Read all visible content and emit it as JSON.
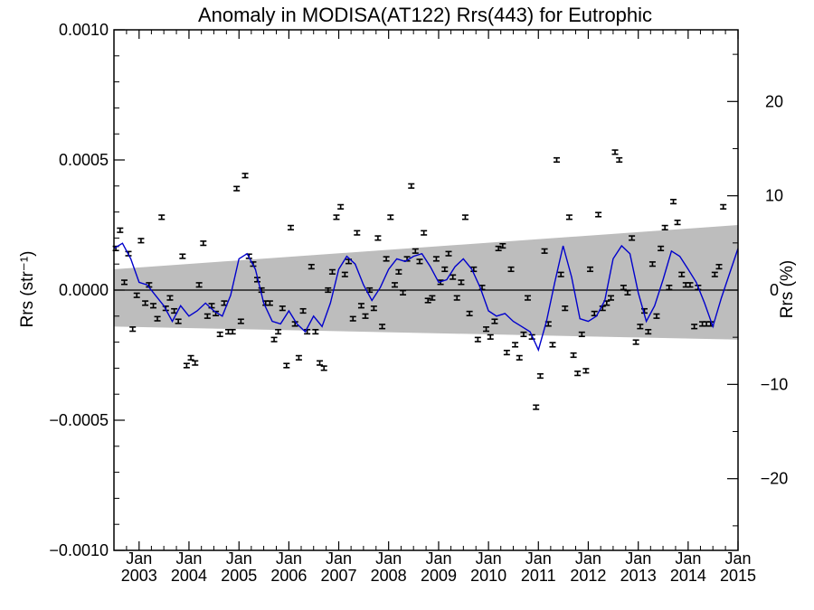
{
  "chart_data": {
    "type": "scatter",
    "title": "Anomaly in MODISA(AT122) Rrs(443) for Eutrophic",
    "ylabel": "Rrs (str⁻¹)",
    "ylabel_right": "Rrs (%)",
    "xlim": [
      "2002-07-01",
      "2015-01-01"
    ],
    "ylim": [
      -0.001,
      0.001
    ],
    "ylim_right": [
      -27.6,
      27.6
    ],
    "y_ticks": [
      "0.0010",
      "0.0005",
      "0.0000",
      "−0.0005",
      "−0.0010"
    ],
    "y_tick_values": [
      0.001,
      0.0005,
      0.0,
      -0.0005,
      -0.001
    ],
    "y_ticks_right": [
      "20",
      "10",
      "0",
      "−10",
      "−20"
    ],
    "y_tick_values_right": [
      20,
      10,
      0,
      -10,
      -20
    ],
    "x_ticks": [
      {
        "date": "2003-01-01",
        "month": "Jan",
        "year": "2003"
      },
      {
        "date": "2004-01-01",
        "month": "Jan",
        "year": "2004"
      },
      {
        "date": "2005-01-01",
        "month": "Jan",
        "year": "2005"
      },
      {
        "date": "2006-01-01",
        "month": "Jan",
        "year": "2006"
      },
      {
        "date": "2007-01-01",
        "month": "Jan",
        "year": "2007"
      },
      {
        "date": "2008-01-01",
        "month": "Jan",
        "year": "2008"
      },
      {
        "date": "2009-01-01",
        "month": "Jan",
        "year": "2009"
      },
      {
        "date": "2010-01-01",
        "month": "Jan",
        "year": "2010"
      },
      {
        "date": "2011-01-01",
        "month": "Jan",
        "year": "2011"
      },
      {
        "date": "2012-01-01",
        "month": "Jan",
        "year": "2012"
      },
      {
        "date": "2013-01-01",
        "month": "Jan",
        "year": "2013"
      },
      {
        "date": "2014-01-01",
        "month": "Jan",
        "year": "2014"
      },
      {
        "date": "2015-01-01",
        "month": "Jan",
        "year": "2015"
      }
    ],
    "band": {
      "upper_start": 8e-05,
      "upper_end": 0.00025,
      "lower_start": -0.00014,
      "lower_end": -0.00019,
      "date_start": "2002-07-01",
      "date_end": "2015-01-01"
    },
    "points": [
      {
        "date": "2002-07-15",
        "y": 0.00016,
        "err": 8e-06
      },
      {
        "date": "2002-08-15",
        "y": 0.00023,
        "err": 8e-06
      },
      {
        "date": "2002-09-15",
        "y": 3e-05,
        "err": 8e-06
      },
      {
        "date": "2002-10-15",
        "y": 0.00014,
        "err": 8e-06
      },
      {
        "date": "2002-11-15",
        "y": -0.00015,
        "err": 8e-06
      },
      {
        "date": "2002-12-15",
        "y": -2e-05,
        "err": 8e-06
      },
      {
        "date": "2003-01-15",
        "y": 0.00019,
        "err": 8e-06
      },
      {
        "date": "2003-02-15",
        "y": -5e-05,
        "err": 8e-06
      },
      {
        "date": "2003-03-15",
        "y": 2e-05,
        "err": 8e-06
      },
      {
        "date": "2003-04-15",
        "y": -6e-05,
        "err": 8e-06
      },
      {
        "date": "2003-05-15",
        "y": -0.00011,
        "err": 8e-06
      },
      {
        "date": "2003-06-15",
        "y": 0.00028,
        "err": 8e-06
      },
      {
        "date": "2003-07-15",
        "y": -7e-05,
        "err": 8e-06
      },
      {
        "date": "2003-08-15",
        "y": -3e-05,
        "err": 8e-06
      },
      {
        "date": "2003-09-15",
        "y": -8e-05,
        "err": 8e-06
      },
      {
        "date": "2003-10-15",
        "y": -0.00012,
        "err": 8e-06
      },
      {
        "date": "2003-11-15",
        "y": 0.00013,
        "err": 8e-06
      },
      {
        "date": "2003-12-15",
        "y": -0.00029,
        "err": 8e-06
      },
      {
        "date": "2004-01-15",
        "y": -0.00026,
        "err": 8e-06
      },
      {
        "date": "2004-02-15",
        "y": -0.00028,
        "err": 8e-06
      },
      {
        "date": "2004-03-15",
        "y": 2e-05,
        "err": 8e-06
      },
      {
        "date": "2004-04-15",
        "y": 0.00018,
        "err": 8e-06
      },
      {
        "date": "2004-05-15",
        "y": -0.0001,
        "err": 8e-06
      },
      {
        "date": "2004-06-15",
        "y": -6e-05,
        "err": 8e-06
      },
      {
        "date": "2004-07-15",
        "y": -9e-05,
        "err": 8e-06
      },
      {
        "date": "2004-08-15",
        "y": -0.00017,
        "err": 8e-06
      },
      {
        "date": "2004-09-15",
        "y": -5e-05,
        "err": 8e-06
      },
      {
        "date": "2004-10-15",
        "y": -0.00016,
        "err": 8e-06
      },
      {
        "date": "2004-11-15",
        "y": -0.00016,
        "err": 8e-06
      },
      {
        "date": "2004-12-15",
        "y": 0.00039,
        "err": 8e-06
      },
      {
        "date": "2005-01-15",
        "y": -0.00012,
        "err": 8e-06
      },
      {
        "date": "2005-02-15",
        "y": 0.00044,
        "err": 8e-06
      },
      {
        "date": "2005-03-15",
        "y": 0.00013,
        "err": 8e-06
      },
      {
        "date": "2005-04-15",
        "y": 0.0001,
        "err": 8e-06
      },
      {
        "date": "2005-05-15",
        "y": 4e-05,
        "err": 8e-06
      },
      {
        "date": "2005-06-15",
        "y": 0.0,
        "err": 8e-06
      },
      {
        "date": "2005-07-15",
        "y": -5e-05,
        "err": 8e-06
      },
      {
        "date": "2005-08-15",
        "y": -5e-05,
        "err": 8e-06
      },
      {
        "date": "2005-09-15",
        "y": -0.00019,
        "err": 8e-06
      },
      {
        "date": "2005-10-15",
        "y": -0.00016,
        "err": 8e-06
      },
      {
        "date": "2005-11-15",
        "y": -7e-05,
        "err": 8e-06
      },
      {
        "date": "2005-12-15",
        "y": -0.00029,
        "err": 8e-06
      },
      {
        "date": "2006-01-15",
        "y": 0.00024,
        "err": 8e-06
      },
      {
        "date": "2006-02-15",
        "y": -0.00013,
        "err": 8e-06
      },
      {
        "date": "2006-03-15",
        "y": -0.00026,
        "err": 8e-06
      },
      {
        "date": "2006-04-15",
        "y": -8e-05,
        "err": 8e-06
      },
      {
        "date": "2006-05-15",
        "y": -0.00016,
        "err": 8e-06
      },
      {
        "date": "2006-06-15",
        "y": 9e-05,
        "err": 8e-06
      },
      {
        "date": "2006-07-15",
        "y": -0.00016,
        "err": 8e-06
      },
      {
        "date": "2006-08-15",
        "y": -0.00028,
        "err": 8e-06
      },
      {
        "date": "2006-09-15",
        "y": -0.0003,
        "err": 8e-06
      },
      {
        "date": "2006-10-15",
        "y": 0.0,
        "err": 8e-06
      },
      {
        "date": "2006-11-15",
        "y": 7e-05,
        "err": 8e-06
      },
      {
        "date": "2006-12-15",
        "y": 0.00028,
        "err": 8e-06
      },
      {
        "date": "2007-01-15",
        "y": 0.00032,
        "err": 8e-06
      },
      {
        "date": "2007-02-15",
        "y": 6e-05,
        "err": 8e-06
      },
      {
        "date": "2007-03-15",
        "y": 0.00011,
        "err": 8e-06
      },
      {
        "date": "2007-04-15",
        "y": -0.00011,
        "err": 8e-06
      },
      {
        "date": "2007-05-15",
        "y": 0.00022,
        "err": 8e-06
      },
      {
        "date": "2007-06-15",
        "y": -6e-05,
        "err": 8e-06
      },
      {
        "date": "2007-07-15",
        "y": -0.0001,
        "err": 8e-06
      },
      {
        "date": "2007-08-15",
        "y": 0.0,
        "err": 8e-06
      },
      {
        "date": "2007-09-15",
        "y": -7e-05,
        "err": 8e-06
      },
      {
        "date": "2007-10-15",
        "y": 0.0002,
        "err": 8e-06
      },
      {
        "date": "2007-11-15",
        "y": -0.00014,
        "err": 8e-06
      },
      {
        "date": "2007-12-15",
        "y": 0.00012,
        "err": 8e-06
      },
      {
        "date": "2008-01-15",
        "y": 0.00028,
        "err": 8e-06
      },
      {
        "date": "2008-02-15",
        "y": 2e-05,
        "err": 8e-06
      },
      {
        "date": "2008-03-15",
        "y": 7e-05,
        "err": 8e-06
      },
      {
        "date": "2008-04-15",
        "y": -1e-05,
        "err": 8e-06
      },
      {
        "date": "2008-05-15",
        "y": 0.00012,
        "err": 8e-06
      },
      {
        "date": "2008-06-15",
        "y": 0.0004,
        "err": 8e-06
      },
      {
        "date": "2008-07-15",
        "y": 0.00015,
        "err": 8e-06
      },
      {
        "date": "2008-08-15",
        "y": 0.00011,
        "err": 8e-06
      },
      {
        "date": "2008-09-15",
        "y": 0.00022,
        "err": 8e-06
      },
      {
        "date": "2008-10-15",
        "y": -4e-05,
        "err": 8e-06
      },
      {
        "date": "2008-11-15",
        "y": -3e-05,
        "err": 8e-06
      },
      {
        "date": "2008-12-15",
        "y": 0.00012,
        "err": 8e-06
      },
      {
        "date": "2009-01-15",
        "y": 3e-05,
        "err": 8e-06
      },
      {
        "date": "2009-02-15",
        "y": 8e-05,
        "err": 8e-06
      },
      {
        "date": "2009-03-15",
        "y": 0.00014,
        "err": 8e-06
      },
      {
        "date": "2009-04-15",
        "y": 5e-05,
        "err": 8e-06
      },
      {
        "date": "2009-05-15",
        "y": -3e-05,
        "err": 8e-06
      },
      {
        "date": "2009-06-15",
        "y": 3e-05,
        "err": 8e-06
      },
      {
        "date": "2009-07-15",
        "y": 0.00028,
        "err": 8e-06
      },
      {
        "date": "2009-08-15",
        "y": -9e-05,
        "err": 8e-06
      },
      {
        "date": "2009-09-15",
        "y": 8e-05,
        "err": 8e-06
      },
      {
        "date": "2009-10-15",
        "y": -0.00019,
        "err": 8e-06
      },
      {
        "date": "2009-11-15",
        "y": 1e-05,
        "err": 8e-06
      },
      {
        "date": "2009-12-15",
        "y": -0.00015,
        "err": 8e-06
      },
      {
        "date": "2010-01-15",
        "y": -0.00018,
        "err": 8e-06
      },
      {
        "date": "2010-02-15",
        "y": -0.00012,
        "err": 8e-06
      },
      {
        "date": "2010-03-15",
        "y": 0.00016,
        "err": 8e-06
      },
      {
        "date": "2010-04-15",
        "y": 0.00017,
        "err": 8e-06
      },
      {
        "date": "2010-05-15",
        "y": -0.00024,
        "err": 8e-06
      },
      {
        "date": "2010-06-15",
        "y": 8e-05,
        "err": 8e-06
      },
      {
        "date": "2010-07-15",
        "y": -0.00021,
        "err": 8e-06
      },
      {
        "date": "2010-08-15",
        "y": -0.00026,
        "err": 8e-06
      },
      {
        "date": "2010-09-15",
        "y": -0.00017,
        "err": 8e-06
      },
      {
        "date": "2010-10-15",
        "y": -3e-05,
        "err": 8e-06
      },
      {
        "date": "2010-11-15",
        "y": -0.00018,
        "err": 8e-06
      },
      {
        "date": "2010-12-15",
        "y": -0.00045,
        "err": 8e-06
      },
      {
        "date": "2011-01-15",
        "y": -0.00033,
        "err": 8e-06
      },
      {
        "date": "2011-02-15",
        "y": 0.00015,
        "err": 8e-06
      },
      {
        "date": "2011-03-15",
        "y": -0.00013,
        "err": 8e-06
      },
      {
        "date": "2011-04-15",
        "y": -0.00021,
        "err": 8e-06
      },
      {
        "date": "2011-05-15",
        "y": 0.0005,
        "err": 8e-06
      },
      {
        "date": "2011-06-15",
        "y": 6e-05,
        "err": 8e-06
      },
      {
        "date": "2011-07-15",
        "y": -7e-05,
        "err": 8e-06
      },
      {
        "date": "2011-08-15",
        "y": 0.00028,
        "err": 8e-06
      },
      {
        "date": "2011-09-15",
        "y": -0.00025,
        "err": 8e-06
      },
      {
        "date": "2011-10-15",
        "y": -0.00032,
        "err": 8e-06
      },
      {
        "date": "2011-11-15",
        "y": -0.00017,
        "err": 8e-06
      },
      {
        "date": "2011-12-15",
        "y": -0.00031,
        "err": 8e-06
      },
      {
        "date": "2012-01-15",
        "y": 8e-05,
        "err": 8e-06
      },
      {
        "date": "2012-02-15",
        "y": -9e-05,
        "err": 8e-06
      },
      {
        "date": "2012-03-15",
        "y": 0.00029,
        "err": 8e-06
      },
      {
        "date": "2012-04-15",
        "y": -7e-05,
        "err": 8e-06
      },
      {
        "date": "2012-05-15",
        "y": -5e-05,
        "err": 8e-06
      },
      {
        "date": "2012-06-15",
        "y": -3e-05,
        "err": 8e-06
      },
      {
        "date": "2012-07-15",
        "y": 0.00053,
        "err": 8e-06
      },
      {
        "date": "2012-08-15",
        "y": 0.0005,
        "err": 8e-06
      },
      {
        "date": "2012-09-15",
        "y": 1e-05,
        "err": 8e-06
      },
      {
        "date": "2012-10-15",
        "y": -1e-05,
        "err": 8e-06
      },
      {
        "date": "2012-11-15",
        "y": 0.0002,
        "err": 8e-06
      },
      {
        "date": "2012-12-15",
        "y": -0.0002,
        "err": 8e-06
      },
      {
        "date": "2013-01-15",
        "y": -0.00014,
        "err": 8e-06
      },
      {
        "date": "2013-02-15",
        "y": -8e-05,
        "err": 8e-06
      },
      {
        "date": "2013-03-15",
        "y": -0.00016,
        "err": 8e-06
      },
      {
        "date": "2013-04-15",
        "y": 0.0001,
        "err": 8e-06
      },
      {
        "date": "2013-05-15",
        "y": -0.0001,
        "err": 8e-06
      },
      {
        "date": "2013-06-15",
        "y": 0.00016,
        "err": 8e-06
      },
      {
        "date": "2013-07-15",
        "y": 0.00024,
        "err": 8e-06
      },
      {
        "date": "2013-08-15",
        "y": 1e-05,
        "err": 8e-06
      },
      {
        "date": "2013-09-15",
        "y": 0.00034,
        "err": 8e-06
      },
      {
        "date": "2013-10-15",
        "y": 0.00026,
        "err": 8e-06
      },
      {
        "date": "2013-11-15",
        "y": 6e-05,
        "err": 8e-06
      },
      {
        "date": "2013-12-15",
        "y": 2e-05,
        "err": 8e-06
      },
      {
        "date": "2014-01-15",
        "y": 2e-05,
        "err": 8e-06
      },
      {
        "date": "2014-02-15",
        "y": -0.00014,
        "err": 8e-06
      },
      {
        "date": "2014-03-15",
        "y": 1e-05,
        "err": 8e-06
      },
      {
        "date": "2014-04-15",
        "y": -0.00013,
        "err": 8e-06
      },
      {
        "date": "2014-05-15",
        "y": -0.00013,
        "err": 8e-06
      },
      {
        "date": "2014-06-15",
        "y": -0.00013,
        "err": 8e-06
      },
      {
        "date": "2014-07-15",
        "y": 6e-05,
        "err": 8e-06
      },
      {
        "date": "2014-08-15",
        "y": 9e-05,
        "err": 8e-06
      },
      {
        "date": "2014-09-15",
        "y": 0.00032,
        "err": 8e-06
      }
    ],
    "smooth": {
      "color": "#0000cc",
      "x": [
        "2002-07-01",
        "2002-09-01",
        "2002-11-01",
        "2003-01-01",
        "2003-03-01",
        "2003-05-01",
        "2003-07-01",
        "2003-09-01",
        "2003-11-01",
        "2004-01-01",
        "2004-03-01",
        "2004-05-01",
        "2004-07-01",
        "2004-09-01",
        "2004-11-01",
        "2005-01-01",
        "2005-03-01",
        "2005-05-01",
        "2005-07-01",
        "2005-09-01",
        "2005-11-01",
        "2006-01-01",
        "2006-03-01",
        "2006-05-01",
        "2006-07-01",
        "2006-09-01",
        "2006-11-01",
        "2007-01-01",
        "2007-03-01",
        "2007-05-01",
        "2007-07-01",
        "2007-09-01",
        "2007-11-01",
        "2008-01-01",
        "2008-03-01",
        "2008-05-01",
        "2008-07-01",
        "2008-09-01",
        "2008-11-01",
        "2009-01-01",
        "2009-03-01",
        "2009-05-01",
        "2009-07-01",
        "2009-09-01",
        "2009-11-01",
        "2010-01-01",
        "2010-03-01",
        "2010-05-01",
        "2010-07-01",
        "2010-09-01",
        "2010-11-01",
        "2011-01-01",
        "2011-03-01",
        "2011-05-01",
        "2011-07-01",
        "2011-09-01",
        "2011-11-01",
        "2012-01-01",
        "2012-03-01",
        "2012-05-01",
        "2012-07-01",
        "2012-09-01",
        "2012-11-01",
        "2013-01-01",
        "2013-03-01",
        "2013-05-01",
        "2013-07-01",
        "2013-09-01",
        "2013-11-01",
        "2014-01-01",
        "2014-03-01",
        "2014-05-01",
        "2014-07-01",
        "2014-09-01",
        "2015-01-01"
      ],
      "y": [
        0.00016,
        0.00018,
        0.00012,
        3e-05,
        2e-05,
        -2e-05,
        -6e-05,
        -0.00012,
        -6e-05,
        -0.0001,
        -8e-05,
        -5e-05,
        -8e-05,
        -0.0001,
        -2e-05,
        0.00012,
        0.00014,
        8e-05,
        -5e-05,
        -0.00012,
        -0.00013,
        -8e-05,
        -0.00013,
        -0.00016,
        -0.0001,
        -0.00014,
        -5e-05,
        8e-05,
        0.00013,
        0.0001,
        2e-05,
        -4e-05,
        1e-05,
        8e-05,
        0.00012,
        0.00011,
        0.00013,
        0.00014,
        9e-05,
        3e-05,
        4e-05,
        9e-05,
        0.00012,
        8e-05,
        1e-05,
        -8e-05,
        -0.0001,
        -9e-05,
        -0.00012,
        -0.00014,
        -0.00016,
        -0.00023,
        -0.00012,
        3e-05,
        0.00017,
        5e-05,
        -0.00011,
        -0.00012,
        -0.0001,
        -4e-05,
        0.00012,
        0.00017,
        0.00014,
        -1e-05,
        -0.00012,
        -6e-05,
        4e-05,
        0.00015,
        0.00013,
        8e-05,
        3e-05,
        -5e-05,
        -0.00014,
        -3e-05,
        0.00016
      ]
    }
  }
}
